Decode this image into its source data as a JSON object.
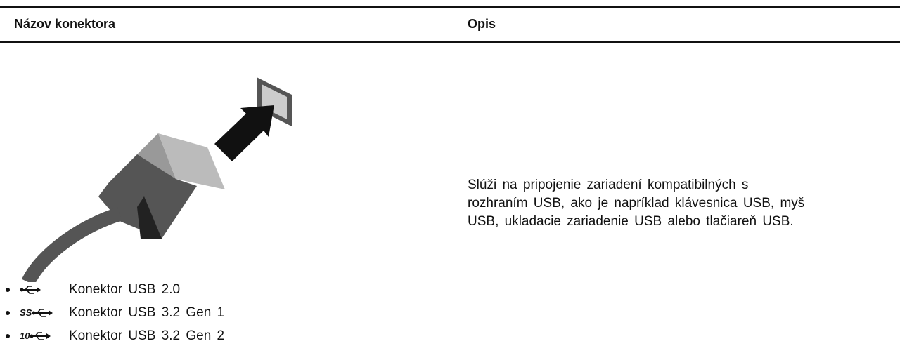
{
  "table": {
    "headers": [
      "Názov konektora",
      "Opis"
    ],
    "rows": [
      {
        "connectors": [
          {
            "label": "Konektor USB 2.0"
          },
          {
            "icon_label": "SS",
            "label": "Konektor USB 3.2 Gen 1"
          },
          {
            "icon_label": "10",
            "label": "Konektor USB 3.2 Gen 2"
          }
        ],
        "description": [
          "Slúži na pripojenie zariadení kompatibilných s",
          "rozhraním USB, ako je napríklad klávesnica USB, myš",
          "USB, ukladacie zariadenie USB alebo tlačiareň USB."
        ]
      }
    ]
  }
}
